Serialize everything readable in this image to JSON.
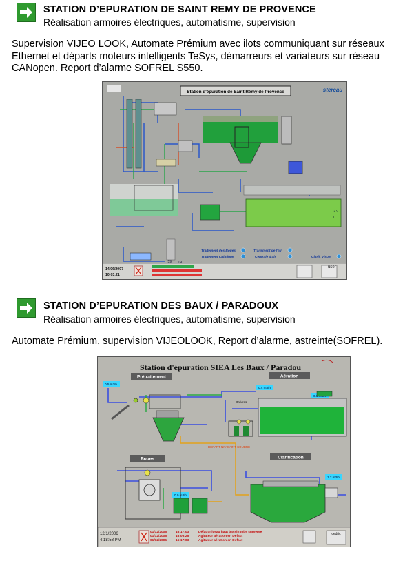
{
  "section1": {
    "title": "STATION D’EPURATION DE SAINT REMY DE PROVENCE",
    "subtitle": "Réalisation armoires électriques, automatisme, supervision",
    "description": "Supervision VIJEO LOOK, Automate Prémium avec ilots communiquant sur réseaux Ethernet et départs moteurs intelligents TeSys, démarreurs et variateurs sur réseau CANopen. Report d’alarme SOFREL S550.",
    "screenshot": {
      "banner": "Station d'épuration de Saint Rémy de Provence",
      "logo": "stereau",
      "date": "14/06/2007",
      "time": "10:03:21",
      "user_label": "user",
      "level_value": "59",
      "level_unit": "m3",
      "buttons": [
        "Traitement des Boues",
        "Traitement de l'air",
        "Traitement Chimique",
        "Centrale d'air",
        "Clarif. Visuel"
      ]
    }
  },
  "section2": {
    "title": "STATION D’EPURATION DES BAUX / PARADOUX",
    "subtitle": "Réalisation armoires électriques, automatisme, supervision",
    "description": "Automate Prémium, supervision VIJEOLOOK, Report d’alarme, astreinte(SOFREL).",
    "screenshot": {
      "banner": "Station d'épuration SIEA Les Baux / Paradou",
      "panels": [
        "Prétraitement",
        "Aération",
        "Boues",
        "Clarification"
      ],
      "date": "12/1/2006",
      "time": "4:18:58 PM",
      "user_label": "cedric",
      "alarm_rows": [
        {
          "date": "01/12/2006",
          "time": "16:17:03",
          "msg": "Défaut niveau haut bassin tobe surverse"
        },
        {
          "date": "01/12/2006",
          "time": "16:06:26",
          "msg": "Agitateur aération en Défaut"
        },
        {
          "date": "01/12/2006",
          "time": "16:17:03",
          "msg": "Agitateur aération en Défaut"
        }
      ],
      "flow_labels": [
        "0.5 m3/h",
        "0.4 m3/h",
        "0.0 m3/h",
        "1.2 m3/h",
        "0.0 m3/h"
      ],
      "text_deposit": "DEPART NIV SAINT SOUBRE",
      "text_levels": "Ordures"
    }
  }
}
